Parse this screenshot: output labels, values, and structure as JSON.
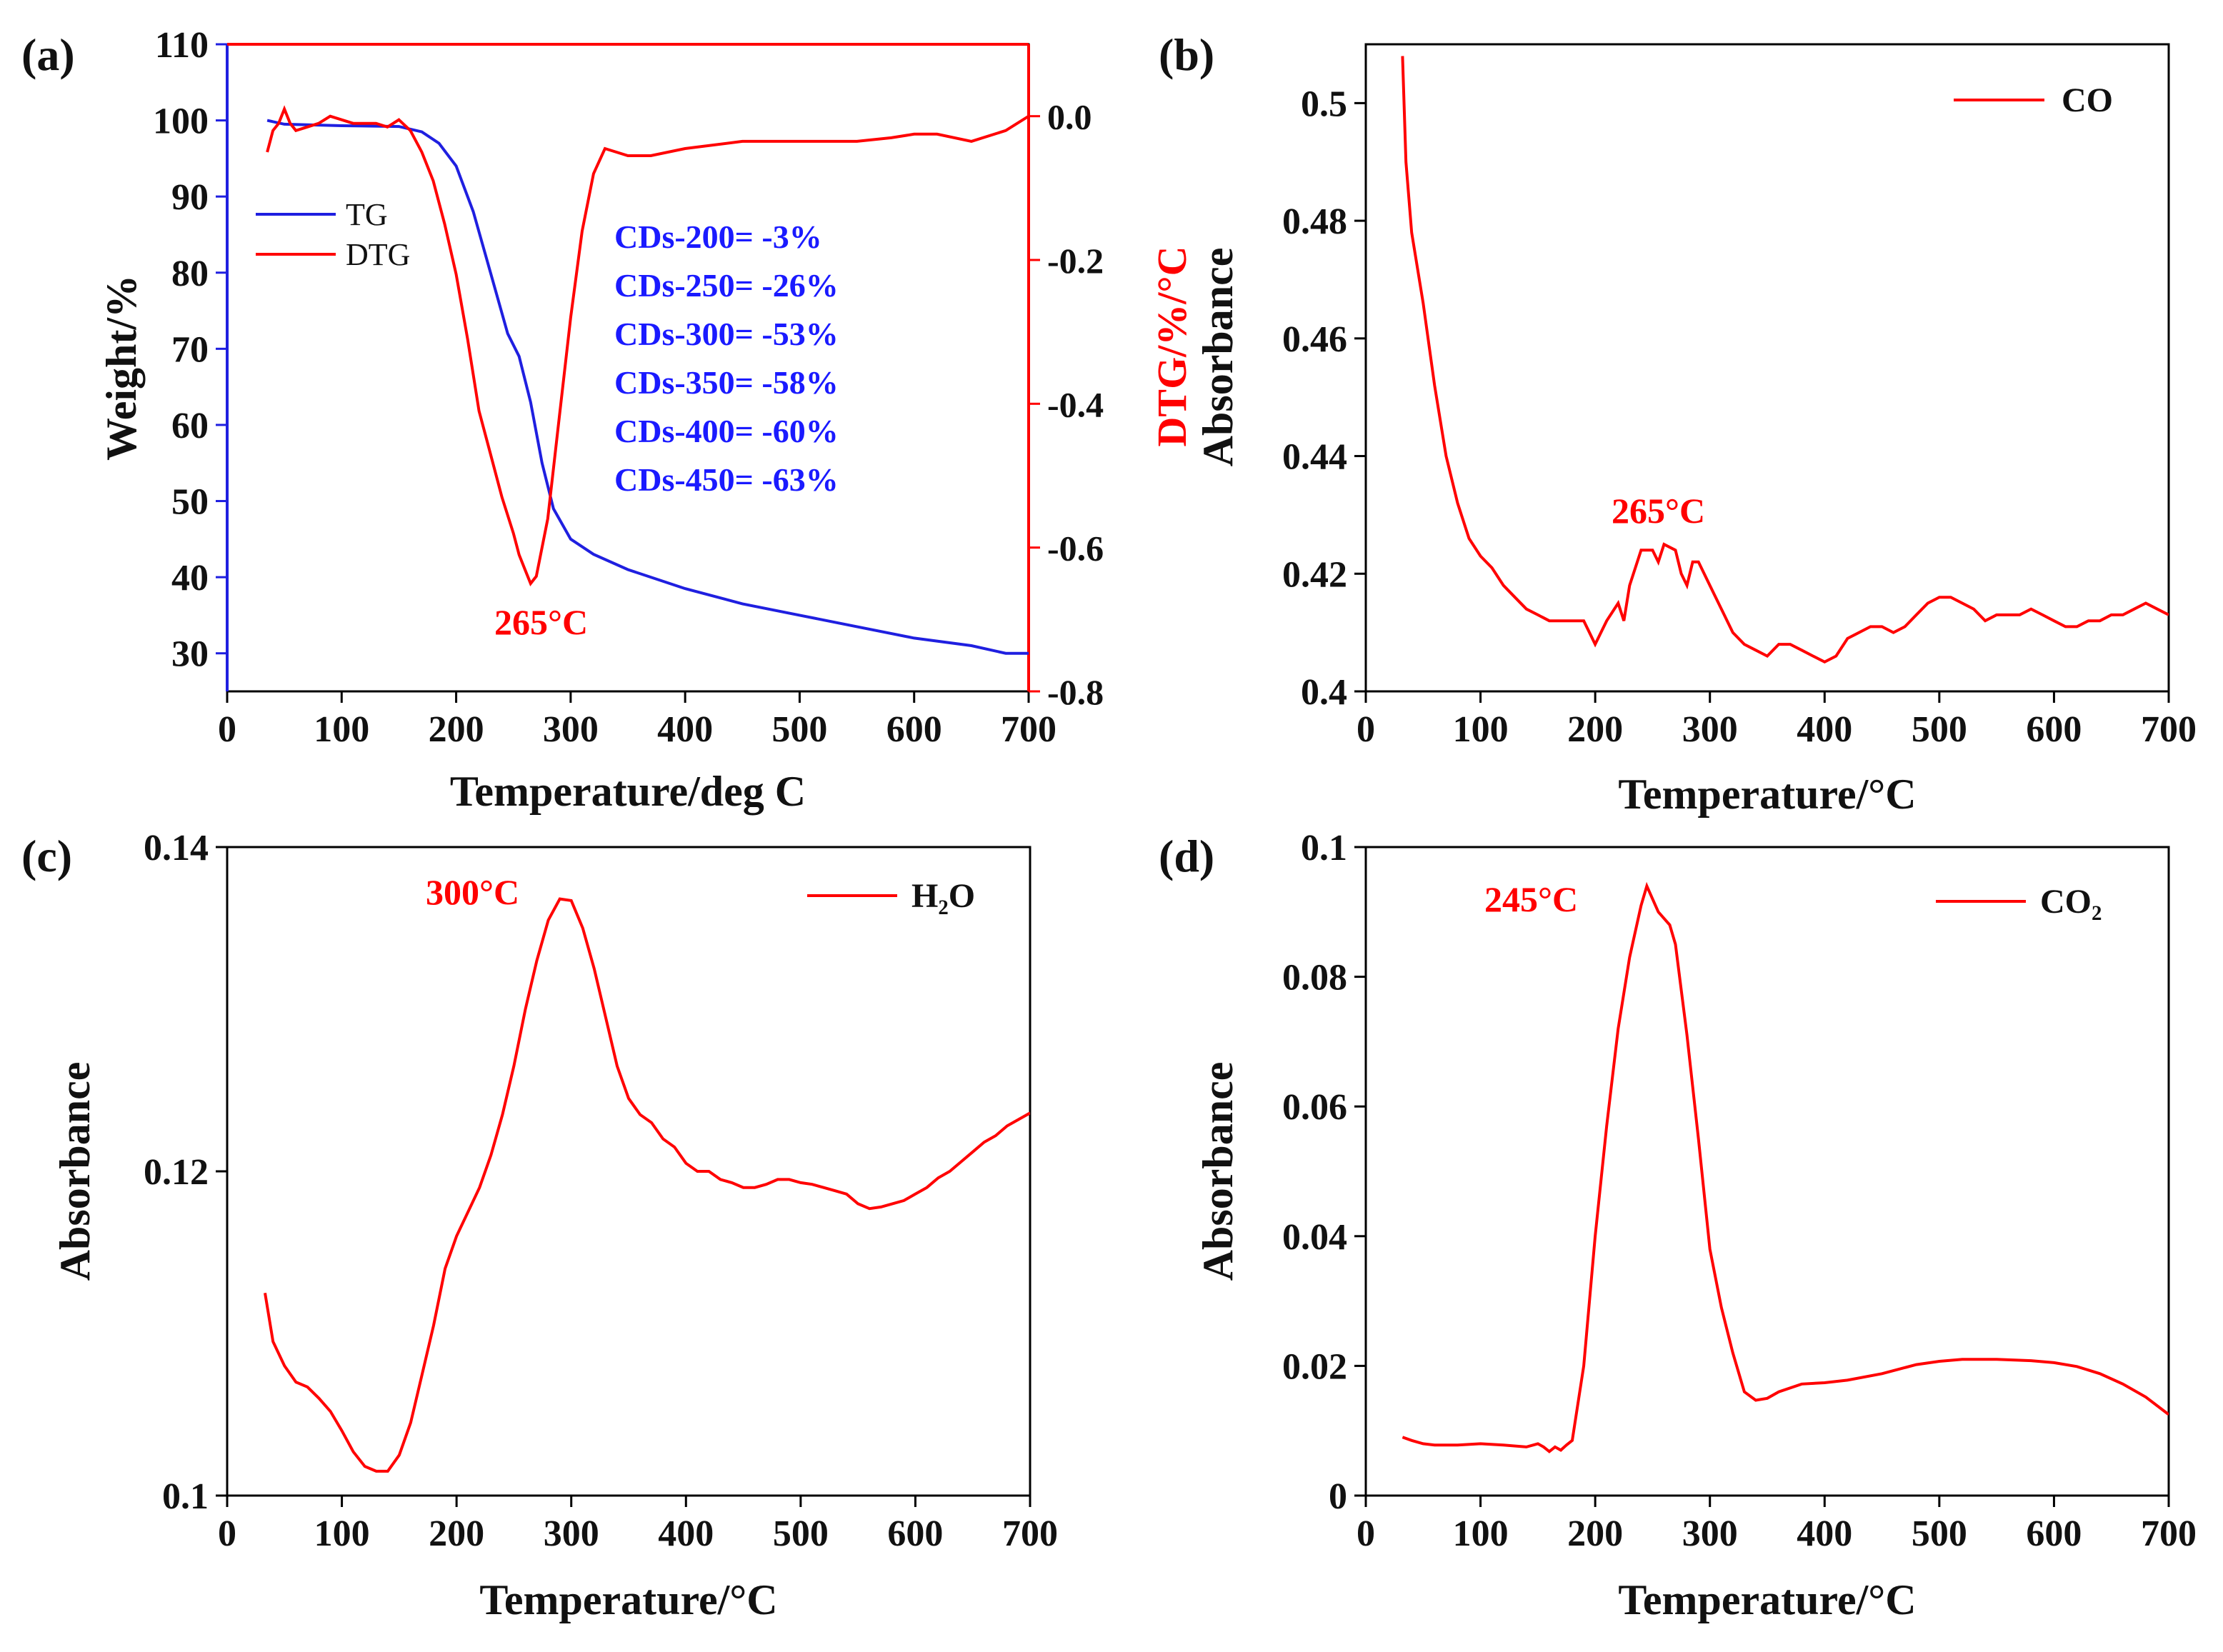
{
  "chart_data": [
    {
      "panel": "(a)",
      "type": "line",
      "xlabel": "Temperature/deg C",
      "ylabel": "Weight/%",
      "y2label": "DTG/%/°C",
      "xlim": [
        0,
        700
      ],
      "ylim": [
        25,
        110
      ],
      "y2lim": [
        -0.8,
        0.1
      ],
      "xticks": [
        0,
        100,
        200,
        300,
        400,
        500,
        600,
        700
      ],
      "yticks": [
        30,
        40,
        50,
        60,
        70,
        80,
        90,
        100,
        110
      ],
      "y2ticks": [
        -0.8,
        -0.6,
        -0.4,
        -0.2,
        0.0
      ],
      "y2tick_labels": [
        "-0.8",
        "-0.6",
        "-0.4",
        "-0.2",
        "0.0"
      ],
      "legend": [
        "TG",
        "DTG"
      ],
      "series": [
        {
          "name": "TG",
          "axis": "left",
          "color": "#1f1fe0",
          "x": [
            35,
            50,
            100,
            150,
            170,
            185,
            200,
            215,
            230,
            245,
            255,
            265,
            275,
            285,
            300,
            320,
            350,
            400,
            450,
            500,
            550,
            600,
            650,
            680,
            700
          ],
          "y": [
            100,
            99.5,
            99.3,
            99.2,
            98.5,
            97,
            94,
            88,
            80,
            72,
            69,
            63,
            55,
            49,
            45,
            43,
            41,
            38.5,
            36.5,
            35,
            33.5,
            32,
            31,
            30,
            30
          ]
        },
        {
          "name": "DTG",
          "axis": "right",
          "color": "#ff0000",
          "x": [
            35,
            40,
            45,
            50,
            55,
            60,
            70,
            80,
            90,
            100,
            110,
            120,
            130,
            140,
            150,
            160,
            170,
            180,
            190,
            200,
            210,
            220,
            230,
            240,
            250,
            255,
            260,
            265,
            270,
            280,
            290,
            300,
            310,
            320,
            330,
            340,
            350,
            370,
            400,
            450,
            500,
            550,
            580,
            600,
            620,
            650,
            680,
            700
          ],
          "y": [
            -0.05,
            -0.02,
            -0.01,
            0.01,
            -0.01,
            -0.02,
            -0.015,
            -0.01,
            0.0,
            -0.005,
            -0.01,
            -0.01,
            -0.01,
            -0.015,
            -0.005,
            -0.02,
            -0.05,
            -0.09,
            -0.15,
            -0.22,
            -0.31,
            -0.41,
            -0.47,
            -0.53,
            -0.58,
            -0.61,
            -0.63,
            -0.65,
            -0.64,
            -0.56,
            -0.42,
            -0.28,
            -0.16,
            -0.08,
            -0.045,
            -0.05,
            -0.055,
            -0.055,
            -0.045,
            -0.035,
            -0.035,
            -0.035,
            -0.03,
            -0.025,
            -0.025,
            -0.035,
            -0.02,
            0.0
          ]
        }
      ],
      "annotations": [
        "265°C"
      ],
      "mass_loss_labels": [
        "CDs-200= -3%",
        "CDs-250= -26%",
        "CDs-300= -53%",
        "CDs-350= -58%",
        "CDs-400= -60%",
        "CDs-450= -63%"
      ]
    },
    {
      "panel": "(b)",
      "type": "line",
      "xlabel": "Temperature/°C",
      "ylabel": "Absorbance",
      "xlim": [
        0,
        700
      ],
      "ylim": [
        0.4,
        0.51
      ],
      "xticks": [
        0,
        100,
        200,
        300,
        400,
        500,
        600,
        700
      ],
      "yticks": [
        0.4,
        0.42,
        0.44,
        0.46,
        0.48,
        0.5
      ],
      "ytick_labels": [
        "0.4",
        "0.42",
        "0.44",
        "0.46",
        "0.48",
        "0.5"
      ],
      "legend": [
        "CO"
      ],
      "series": [
        {
          "name": "CO",
          "color": "#ff0000",
          "x": [
            32,
            35,
            40,
            50,
            60,
            70,
            80,
            90,
            100,
            110,
            120,
            130,
            140,
            150,
            160,
            170,
            180,
            190,
            200,
            210,
            220,
            225,
            230,
            240,
            250,
            255,
            260,
            270,
            275,
            280,
            285,
            290,
            300,
            310,
            320,
            330,
            340,
            350,
            360,
            370,
            380,
            390,
            400,
            410,
            420,
            440,
            450,
            460,
            470,
            480,
            490,
            500,
            510,
            520,
            530,
            540,
            550,
            560,
            570,
            580,
            590,
            600,
            610,
            620,
            630,
            640,
            650,
            660,
            670,
            680,
            690,
            700
          ],
          "y": [
            0.508,
            0.49,
            0.478,
            0.466,
            0.452,
            0.44,
            0.432,
            0.426,
            0.423,
            0.421,
            0.418,
            0.416,
            0.414,
            0.413,
            0.412,
            0.412,
            0.412,
            0.412,
            0.408,
            0.412,
            0.415,
            0.412,
            0.418,
            0.424,
            0.424,
            0.422,
            0.425,
            0.424,
            0.42,
            0.418,
            0.422,
            0.422,
            0.418,
            0.414,
            0.41,
            0.408,
            0.407,
            0.406,
            0.408,
            0.408,
            0.407,
            0.406,
            0.405,
            0.406,
            0.409,
            0.411,
            0.411,
            0.41,
            0.411,
            0.413,
            0.415,
            0.416,
            0.416,
            0.415,
            0.414,
            0.412,
            0.413,
            0.413,
            0.413,
            0.414,
            0.413,
            0.412,
            0.411,
            0.411,
            0.412,
            0.412,
            0.413,
            0.413,
            0.414,
            0.415,
            0.414,
            0.413
          ]
        }
      ],
      "annotations": [
        "265°C"
      ]
    },
    {
      "panel": "(c)",
      "type": "line",
      "xlabel": "Temperature/°C",
      "ylabel": "Absorbance",
      "xlim": [
        0,
        700
      ],
      "ylim": [
        0.1,
        0.14
      ],
      "xticks": [
        0,
        100,
        200,
        300,
        400,
        500,
        600,
        700
      ],
      "yticks": [
        0.1,
        0.12,
        0.14
      ],
      "ytick_labels": [
        "0.1",
        "0.12",
        "0.14"
      ],
      "legend": [
        "H₂O"
      ],
      "series": [
        {
          "name": "H2O",
          "color": "#ff0000",
          "x": [
            33,
            40,
            50,
            60,
            70,
            80,
            90,
            100,
            110,
            120,
            130,
            140,
            150,
            160,
            170,
            180,
            190,
            200,
            210,
            220,
            230,
            240,
            250,
            260,
            270,
            280,
            290,
            300,
            310,
            320,
            330,
            340,
            350,
            360,
            370,
            380,
            390,
            400,
            410,
            420,
            430,
            440,
            450,
            460,
            470,
            480,
            490,
            500,
            510,
            520,
            530,
            540,
            550,
            560,
            570,
            580,
            590,
            600,
            610,
            620,
            630,
            640,
            650,
            660,
            670,
            680,
            690,
            700
          ],
          "y": [
            0.1125,
            0.1095,
            0.108,
            0.107,
            0.1067,
            0.106,
            0.1052,
            0.104,
            0.1027,
            0.1018,
            0.1015,
            0.1015,
            0.1025,
            0.1045,
            0.1075,
            0.1105,
            0.114,
            0.116,
            0.1175,
            0.119,
            0.121,
            0.1235,
            0.1265,
            0.13,
            0.133,
            0.1355,
            0.1368,
            0.1367,
            0.135,
            0.1325,
            0.1295,
            0.1265,
            0.1245,
            0.1235,
            0.123,
            0.122,
            0.1215,
            0.1205,
            0.12,
            0.12,
            0.1195,
            0.1193,
            0.119,
            0.119,
            0.1192,
            0.1195,
            0.1195,
            0.1193,
            0.1192,
            0.119,
            0.1188,
            0.1186,
            0.118,
            0.1177,
            0.1178,
            0.118,
            0.1182,
            0.1186,
            0.119,
            0.1196,
            0.12,
            0.1206,
            0.1212,
            0.1218,
            0.1222,
            0.1228,
            0.1232,
            0.1236
          ]
        }
      ],
      "annotations": [
        "300°C"
      ]
    },
    {
      "panel": "(d)",
      "type": "line",
      "xlabel": "Temperature/°C",
      "ylabel": "Absorbance",
      "xlim": [
        0,
        700
      ],
      "ylim": [
        0,
        0.1
      ],
      "xticks": [
        0,
        100,
        200,
        300,
        400,
        500,
        600,
        700
      ],
      "yticks": [
        0,
        0.02,
        0.04,
        0.06,
        0.08,
        0.1
      ],
      "ytick_labels": [
        "0",
        "0.02",
        "0.04",
        "0.06",
        "0.08",
        "0.1"
      ],
      "legend": [
        "CO₂"
      ],
      "series": [
        {
          "name": "CO2",
          "color": "#ff0000",
          "x": [
            32,
            40,
            50,
            60,
            80,
            100,
            120,
            140,
            150,
            155,
            160,
            165,
            170,
            175,
            180,
            190,
            200,
            210,
            220,
            230,
            240,
            245,
            250,
            255,
            260,
            265,
            270,
            280,
            290,
            300,
            310,
            320,
            330,
            340,
            350,
            360,
            380,
            400,
            420,
            450,
            480,
            500,
            520,
            550,
            580,
            600,
            620,
            640,
            660,
            680,
            700
          ],
          "y": [
            0.009,
            0.0085,
            0.008,
            0.0078,
            0.0078,
            0.008,
            0.0078,
            0.0075,
            0.008,
            0.0075,
            0.0068,
            0.0075,
            0.007,
            0.0078,
            0.0085,
            0.02,
            0.04,
            0.057,
            0.072,
            0.083,
            0.091,
            0.094,
            0.092,
            0.09,
            0.089,
            0.088,
            0.085,
            0.071,
            0.055,
            0.038,
            0.029,
            0.022,
            0.016,
            0.0147,
            0.015,
            0.016,
            0.0172,
            0.0174,
            0.0178,
            0.0188,
            0.0202,
            0.0207,
            0.021,
            0.021,
            0.0208,
            0.0205,
            0.0199,
            0.0188,
            0.0172,
            0.0152,
            0.0125
          ]
        }
      ],
      "annotations": [
        "245°C"
      ]
    }
  ]
}
